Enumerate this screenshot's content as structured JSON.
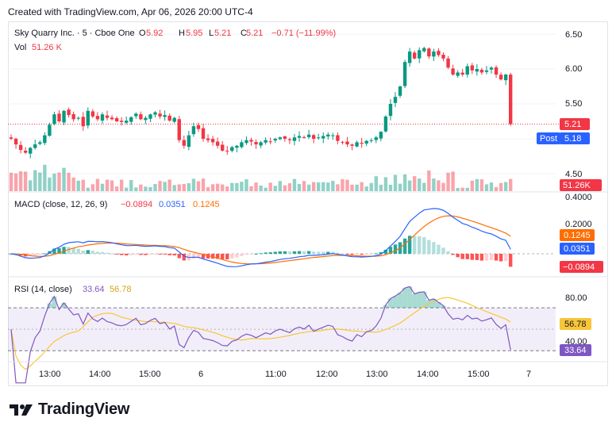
{
  "header": {
    "created_text": "Created with TradingView.com, Apr 06, 2026 20:00 UTC-4"
  },
  "legend": {
    "symbol": "Sky Quarry Inc. · 5 · Cboe One",
    "o_label": "O",
    "o_value": "5.92",
    "h_label": "H",
    "h_value": "5.95",
    "l_label": "L",
    "l_value": "5.21",
    "c_label": "C",
    "c_value": "5.21",
    "change": "−0.71 (−11.99%)",
    "vol_label": "Vol",
    "vol_value": "51.26 K",
    "macd_label": "MACD (close, 12, 26, 9)",
    "macd_hist": "−0.0894",
    "macd_line": "0.0351",
    "macd_signal": "0.1245",
    "rsi_label": "RSI (14, close)",
    "rsi_value": "33.64",
    "rsi_ma": "56.78"
  },
  "price_axis": {
    "ticks": [
      "6.50",
      "6.00",
      "5.50",
      "4.50"
    ],
    "last_label": "5.21",
    "post_tag": "Post",
    "post_value": "5.18",
    "vol_label": "51.26K"
  },
  "macd_axis": {
    "ticks": [
      "0.4000",
      "0.2000"
    ],
    "signal_label": "0.1245",
    "macd_label": "0.0351",
    "hist_label": "−0.0894"
  },
  "rsi_axis": {
    "ticks": [
      "80.00",
      "40.00"
    ],
    "ma_label": "56.78",
    "rsi_label": "33.64"
  },
  "time_axis": {
    "ticks": [
      "13:00",
      "14:00",
      "15:00",
      "6",
      "11:00",
      "12:00",
      "13:00",
      "14:00",
      "15:00",
      "7"
    ]
  },
  "brand": {
    "name": "TradingView"
  },
  "colors": {
    "up": "#089981",
    "down": "#f23645",
    "macd": "#2962ff",
    "signal": "#ff6d00",
    "rsi": "#7e57c2",
    "rsi_ma": "#f7c638",
    "post": "#2962ff"
  },
  "chart_data": {
    "type": "candlestick",
    "symbol": "Sky Quarry Inc.",
    "interval": "5",
    "x_ticks": [
      "13:00",
      "14:00",
      "15:00",
      "6",
      "11:00",
      "12:00",
      "13:00",
      "14:00",
      "15:00",
      "7"
    ],
    "price": {
      "ylim": [
        4.4,
        6.6
      ],
      "close": [
        5.0,
        4.92,
        4.84,
        4.8,
        4.87,
        4.92,
        4.95,
        5.05,
        5.2,
        5.35,
        5.25,
        5.4,
        5.34,
        5.28,
        5.3,
        5.18,
        5.4,
        5.32,
        5.28,
        5.35,
        5.3,
        5.28,
        5.25,
        5.24,
        5.26,
        5.31,
        5.36,
        5.28,
        5.3,
        5.35,
        5.38,
        5.32,
        5.34,
        5.26,
        5.3,
        4.98,
        4.9,
        5.05,
        5.18,
        5.14,
        5.0,
        4.98,
        4.95,
        4.9,
        4.83,
        4.82,
        4.88,
        4.9,
        4.95,
        4.98,
        4.96,
        4.92,
        4.95,
        4.98,
        4.96,
        5.0,
        5.02,
        5.0,
        4.98,
        5.02,
        5.04,
        5.02,
        5.06,
        5.0,
        5.02,
        5.04,
        5.06,
        5.05,
        4.97,
        4.95,
        4.92,
        4.9,
        4.95,
        4.93,
        4.97,
        4.98,
        5.02,
        5.1,
        5.32,
        5.5,
        5.6,
        5.75,
        6.1,
        6.25,
        6.15,
        6.27,
        6.3,
        6.18,
        6.25,
        6.2,
        6.15,
        6.02,
        5.92,
        5.95,
        5.92,
        6.04,
        5.98,
        6.0,
        5.95,
        5.98,
        6.02,
        5.92,
        5.85,
        5.92,
        5.21
      ],
      "last": 5.21,
      "post": 5.18
    },
    "volume": {
      "last": 51260
    },
    "macd": {
      "fast": 12,
      "slow": 26,
      "signal_period": 9,
      "macd_last": 0.0351,
      "signal_last": 0.1245,
      "hist_last": -0.0894,
      "ylim": [
        -0.15,
        0.42
      ]
    },
    "rsi": {
      "period": 14,
      "last": 33.64,
      "ma_last": 56.78,
      "levels": [
        70,
        30
      ],
      "ylim": [
        25,
        90
      ]
    }
  }
}
